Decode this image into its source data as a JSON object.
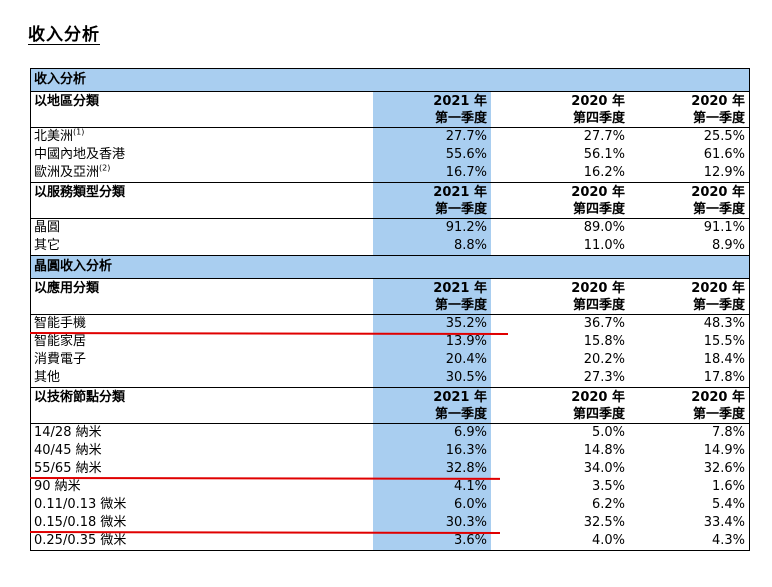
{
  "page_title": "收入分析",
  "table": {
    "band1": "收入分析",
    "band2": "晶圓收入分析",
    "period_year_1": "2021 年",
    "period_q_1": "第一季度",
    "period_year_2": "2020 年",
    "period_q_2": "第四季度",
    "period_year_3": "2020 年",
    "period_q_3": "第一季度",
    "sections": {
      "region": {
        "header": "以地區分類",
        "rows": [
          {
            "label": "北美洲",
            "note": "(1)",
            "v1": "27.7%",
            "v2": "27.7%",
            "v3": "25.5%"
          },
          {
            "label": "中國內地及香港",
            "note": "",
            "v1": "55.6%",
            "v2": "56.1%",
            "v3": "61.6%"
          },
          {
            "label": "歐洲及亞洲",
            "note": "(2)",
            "v1": "16.7%",
            "v2": "16.2%",
            "v3": "12.9%"
          }
        ]
      },
      "service": {
        "header": "以服務類型分類",
        "rows": [
          {
            "label": "晶圓",
            "v1": "91.2%",
            "v2": "89.0%",
            "v3": "91.1%"
          },
          {
            "label": "其它",
            "v1": "8.8%",
            "v2": "11.0%",
            "v3": "8.9%"
          }
        ]
      },
      "application": {
        "header": "以應用分類",
        "rows": [
          {
            "label": "智能手機",
            "v1": "35.2%",
            "v2": "36.7%",
            "v3": "48.3%"
          },
          {
            "label": "智能家居",
            "v1": "13.9%",
            "v2": "15.8%",
            "v3": "15.5%"
          },
          {
            "label": "消費電子",
            "v1": "20.4%",
            "v2": "20.2%",
            "v3": "18.4%"
          },
          {
            "label": "其他",
            "v1": "30.5%",
            "v2": "27.3%",
            "v3": "17.8%"
          }
        ]
      },
      "node": {
        "header": "以技術節點分類",
        "rows": [
          {
            "label": "14/28 納米",
            "v1": "6.9%",
            "v2": "5.0%",
            "v3": "7.8%"
          },
          {
            "label": "40/45 納米",
            "v1": "16.3%",
            "v2": "14.8%",
            "v3": "14.9%"
          },
          {
            "label": "55/65 納米",
            "v1": "32.8%",
            "v2": "34.0%",
            "v3": "32.6%"
          },
          {
            "label": "90 納米",
            "v1": "4.1%",
            "v2": "3.5%",
            "v3": "1.6%"
          },
          {
            "label": "0.11/0.13 微米",
            "v1": "6.0%",
            "v2": "6.2%",
            "v3": "5.4%"
          },
          {
            "label": "0.15/0.18 微米",
            "v1": "30.3%",
            "v2": "32.5%",
            "v3": "33.4%"
          },
          {
            "label": "0.25/0.35 微米",
            "v1": "3.6%",
            "v2": "4.0%",
            "v3": "4.3%"
          }
        ]
      }
    }
  },
  "colors": {
    "band": "#a9cef0",
    "highlight_column": "#a9cef0",
    "annotation_line": "#e00000"
  }
}
